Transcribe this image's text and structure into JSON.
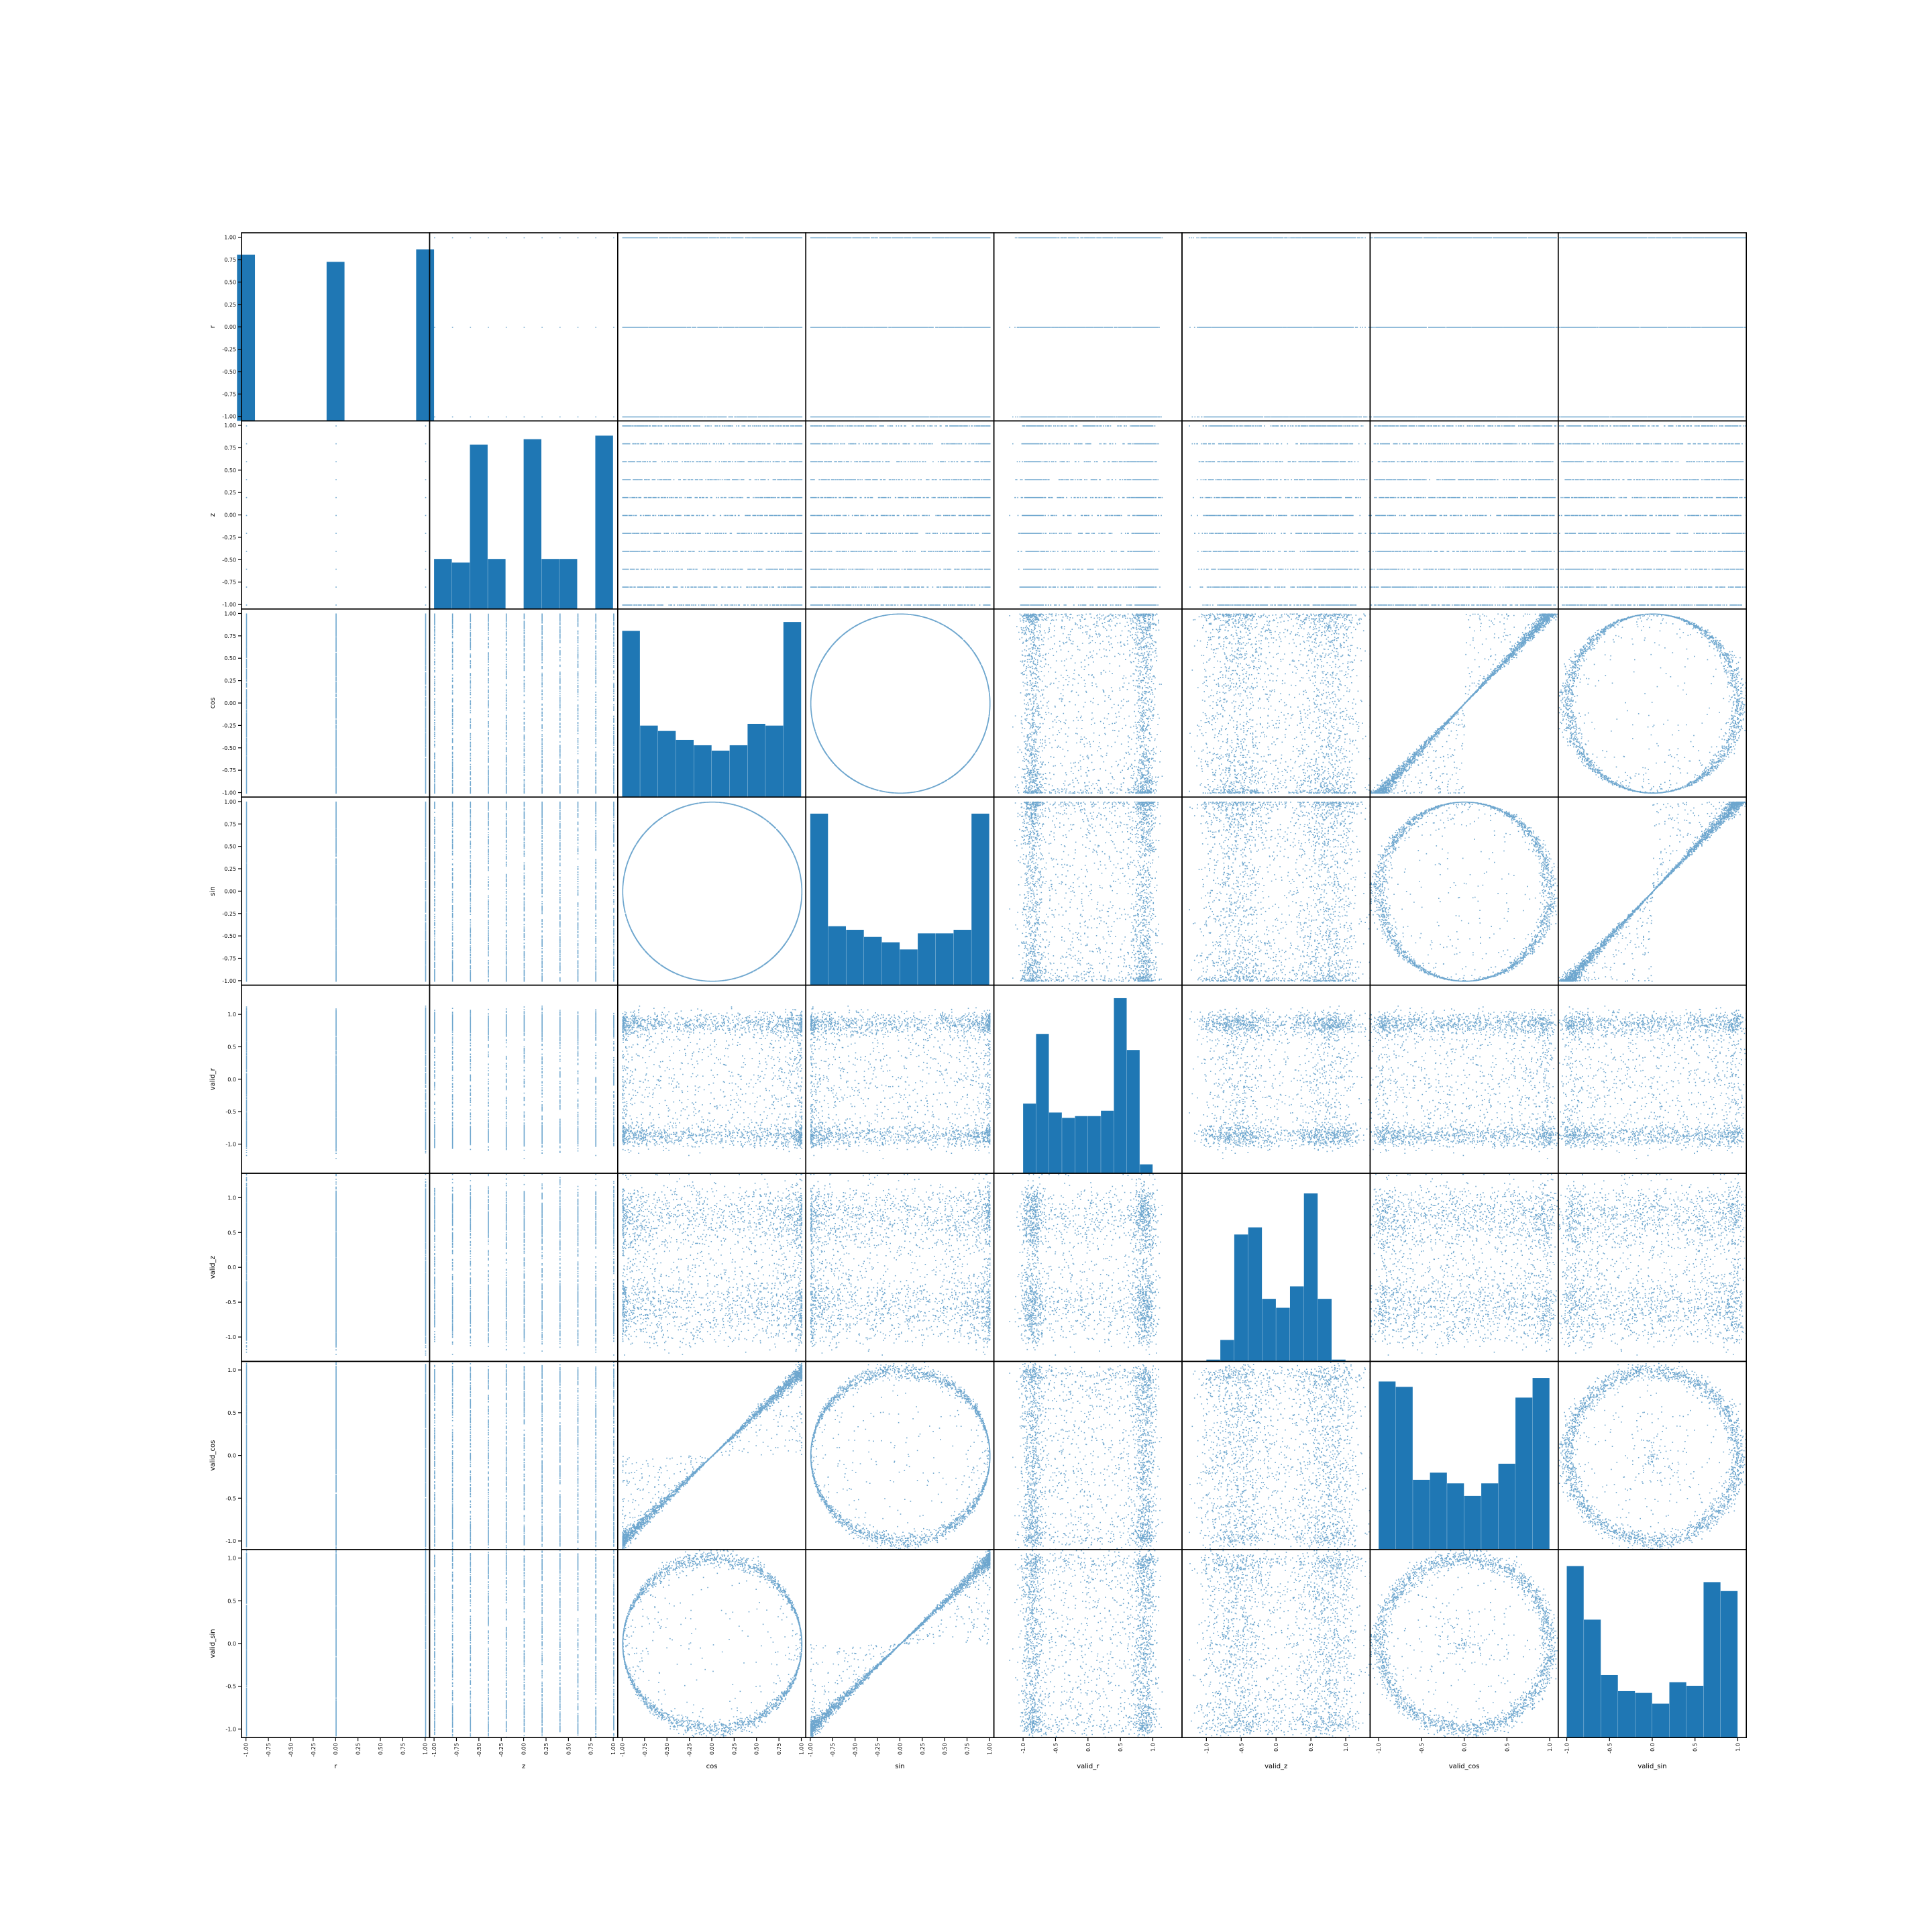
{
  "chart_data": {
    "type": "scatter_matrix",
    "title": "",
    "variables": [
      {
        "name": "r",
        "range": [
          -1.05,
          1.05
        ],
        "ticks": [
          -1.0,
          -0.75,
          -0.5,
          -0.25,
          0.0,
          0.25,
          0.5,
          0.75,
          1.0
        ],
        "tick_labels": [
          "-1.00",
          "-0.75",
          "-0.50",
          "-0.25",
          "0.00",
          "0.25",
          "0.50",
          "0.75",
          "1.00"
        ]
      },
      {
        "name": "z",
        "range": [
          -1.05,
          1.05
        ],
        "ticks": [
          -1.0,
          -0.75,
          -0.5,
          -0.25,
          0.0,
          0.25,
          0.5,
          0.75,
          1.0
        ],
        "tick_labels": [
          "-1.00",
          "-0.75",
          "-0.50",
          "-0.25",
          "0.00",
          "0.25",
          "0.50",
          "0.75",
          "1.00"
        ]
      },
      {
        "name": "cos",
        "range": [
          -1.05,
          1.05
        ],
        "ticks": [
          -1.0,
          -0.75,
          -0.5,
          -0.25,
          0.0,
          0.25,
          0.5,
          0.75,
          1.0
        ],
        "tick_labels": [
          "-1.00",
          "-0.75",
          "-0.50",
          "-0.25",
          "0.00",
          "0.25",
          "0.50",
          "0.75",
          "1.00"
        ]
      },
      {
        "name": "sin",
        "range": [
          -1.05,
          1.05
        ],
        "ticks": [
          -1.0,
          -0.75,
          -0.5,
          -0.25,
          0.0,
          0.25,
          0.5,
          0.75,
          1.0
        ],
        "tick_labels": [
          "-1.00",
          "-0.75",
          "-0.50",
          "-0.25",
          "0.00",
          "0.25",
          "0.50",
          "0.75",
          "1.00"
        ]
      },
      {
        "name": "valid_r",
        "range": [
          -1.45,
          1.45
        ],
        "ticks": [
          -1.0,
          -0.5,
          0.0,
          0.5,
          1.0
        ],
        "tick_labels": [
          "-1.0",
          "-0.5",
          "0.0",
          "0.5",
          "1.0"
        ]
      },
      {
        "name": "valid_z",
        "range": [
          -1.35,
          1.35
        ],
        "ticks": [
          -1.0,
          -0.5,
          0.0,
          0.5,
          1.0
        ],
        "tick_labels": [
          "-1.0",
          "-0.5",
          "0.0",
          "0.5",
          "1.0"
        ]
      },
      {
        "name": "valid_cos",
        "range": [
          -1.1,
          1.1
        ],
        "ticks": [
          -1.0,
          -0.5,
          0.0,
          0.5,
          1.0
        ],
        "tick_labels": [
          "-1.0",
          "-0.5",
          "0.0",
          "0.5",
          "1.0"
        ]
      },
      {
        "name": "valid_sin",
        "range": [
          -1.1,
          1.1
        ],
        "ticks": [
          -1.0,
          -0.5,
          0.0,
          0.5,
          1.0
        ],
        "tick_labels": [
          "-1.0",
          "-0.5",
          "0.0",
          "0.5",
          "1.0"
        ]
      }
    ],
    "histograms": {
      "r": [
        [
          -1.0,
          0.93
        ],
        [
          0.0,
          0.89
        ],
        [
          1.0,
          0.96
        ]
      ],
      "z": [
        0.28,
        0.26,
        0.92,
        0.28,
        0.0,
        0.95,
        0.28,
        0.28,
        0.0,
        0.97
      ],
      "cos": [
        0.93,
        0.4,
        0.37,
        0.32,
        0.29,
        0.26,
        0.29,
        0.41,
        0.4,
        0.98
      ],
      "sin": [
        0.96,
        0.33,
        0.31,
        0.27,
        0.24,
        0.2,
        0.29,
        0.29,
        0.31,
        0.96
      ],
      "valid_r": [
        0.39,
        0.78,
        0.34,
        0.31,
        0.32,
        0.32,
        0.35,
        0.98,
        0.69,
        0.05
      ],
      "valid_z": [
        0.01,
        0.12,
        0.71,
        0.75,
        0.35,
        0.3,
        0.42,
        0.94,
        0.35,
        0.01
      ],
      "valid_cos": [
        0.94,
        0.91,
        0.39,
        0.43,
        0.37,
        0.3,
        0.37,
        0.48,
        0.85,
        0.96
      ],
      "valid_sin": [
        0.96,
        0.66,
        0.35,
        0.26,
        0.25,
        0.19,
        0.31,
        0.29,
        0.87,
        0.82
      ]
    },
    "point_color": "#1f77b4",
    "grid": false,
    "legend": "none"
  }
}
